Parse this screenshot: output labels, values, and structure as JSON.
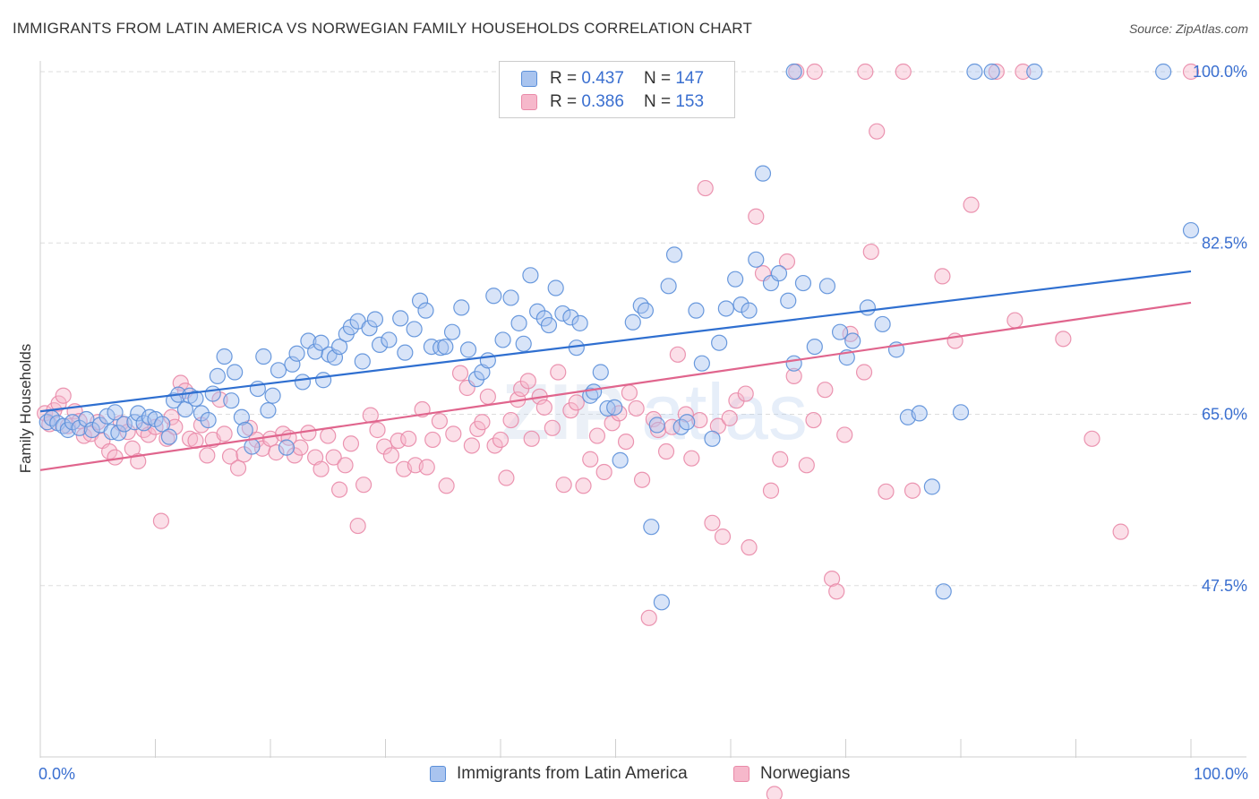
{
  "title": "IMMIGRANTS FROM LATIN AMERICA VS NORWEGIAN FAMILY HOUSEHOLDS CORRELATION CHART",
  "source": "Source: ZipAtlas.com",
  "colors": {
    "blue_fill": "#a9c4ef",
    "blue_stroke": "#5b8fd9",
    "blue_line": "#2f6fd0",
    "pink_fill": "#f6b8cb",
    "pink_stroke": "#e98aa8",
    "pink_line": "#e0658d",
    "tick_label": "#3a6fd0",
    "grid": "#dddddd"
  },
  "legend": {
    "series1": {
      "r_label": "R = ",
      "r_value": "0.437",
      "n_label": "N = ",
      "n_value": "147"
    },
    "series2": {
      "r_label": "R = ",
      "r_value": "0.386",
      "n_label": "N = ",
      "n_value": "153"
    }
  },
  "bottom_legend": {
    "series1": "Immigrants from Latin America",
    "series2": "Norwegians"
  },
  "chart_data": {
    "type": "scatter",
    "title": "IMMIGRANTS FROM LATIN AMERICA VS NORWEGIAN FAMILY HOUSEHOLDS CORRELATION CHART",
    "xlabel": "",
    "ylabel": "Family Households",
    "xlim": [
      0,
      100
    ],
    "ylim": [
      30,
      100
    ],
    "x_tick_labels": [
      "0.0%",
      "100.0%"
    ],
    "y_ticks": [
      47.5,
      65.0,
      82.5,
      100.0
    ],
    "y_tick_labels": [
      "47.5%",
      "65.0%",
      "82.5%",
      "100.0%"
    ],
    "grid": true,
    "legend_position": "top-center",
    "series": [
      {
        "name": "Immigrants from Latin America",
        "color": "#a9c4ef",
        "trend": {
          "x": [
            0,
            100
          ],
          "y": [
            65.3,
            79.6
          ]
        },
        "points": [
          [
            0.6,
            64.2
          ],
          [
            1,
            64.6
          ],
          [
            1.5,
            64.1
          ],
          [
            2,
            63.8
          ],
          [
            2.4,
            63.4
          ],
          [
            2.8,
            64.2
          ],
          [
            3.4,
            63.6
          ],
          [
            4,
            64.5
          ],
          [
            4.5,
            63.4
          ],
          [
            5.2,
            63.9
          ],
          [
            5.8,
            64.8
          ],
          [
            6.2,
            63.2
          ],
          [
            6.8,
            63.1
          ],
          [
            6.5,
            65.2
          ],
          [
            7.3,
            64
          ],
          [
            8.2,
            64.2
          ],
          [
            8.5,
            65.1
          ],
          [
            9,
            64.1
          ],
          [
            9.5,
            64.7
          ],
          [
            10,
            64.5
          ],
          [
            10.6,
            64
          ],
          [
            11.2,
            62.7
          ],
          [
            11.6,
            66.4
          ],
          [
            12,
            67
          ],
          [
            12.6,
            65.5
          ],
          [
            13,
            66.9
          ],
          [
            13.5,
            66.6
          ],
          [
            14,
            65.1
          ],
          [
            14.6,
            64.4
          ],
          [
            15,
            67.1
          ],
          [
            15.4,
            68.9
          ],
          [
            16,
            70.9
          ],
          [
            16.6,
            66.4
          ],
          [
            16.9,
            69.3
          ],
          [
            17.5,
            64.7
          ],
          [
            17.8,
            63.4
          ],
          [
            18.4,
            61.7
          ],
          [
            18.9,
            67.6
          ],
          [
            19.4,
            70.9
          ],
          [
            19.8,
            65.4
          ],
          [
            20.2,
            66.9
          ],
          [
            20.7,
            69.5
          ],
          [
            21.4,
            61.6
          ],
          [
            21.9,
            70.1
          ],
          [
            22.3,
            71.2
          ],
          [
            22.8,
            68.3
          ],
          [
            23.3,
            72.5
          ],
          [
            23.9,
            71.4
          ],
          [
            24.4,
            72.3
          ],
          [
            24.6,
            68.5
          ],
          [
            25.1,
            71.1
          ],
          [
            25.6,
            70.8
          ],
          [
            26,
            71.9
          ],
          [
            26.6,
            73.2
          ],
          [
            27,
            73.9
          ],
          [
            27.6,
            74.5
          ],
          [
            28,
            70.4
          ],
          [
            28.6,
            73.8
          ],
          [
            29.1,
            74.7
          ],
          [
            29.5,
            72.1
          ],
          [
            30.3,
            72.6
          ],
          [
            31.3,
            74.8
          ],
          [
            31.7,
            71.3
          ],
          [
            32.5,
            73.7
          ],
          [
            33,
            76.6
          ],
          [
            33.5,
            75.6
          ],
          [
            34,
            71.9
          ],
          [
            34.8,
            71.8
          ],
          [
            35.2,
            71.9
          ],
          [
            35.8,
            73.4
          ],
          [
            36.6,
            75.9
          ],
          [
            37.2,
            71.6
          ],
          [
            37.9,
            68.6
          ],
          [
            38.4,
            69.3
          ],
          [
            38.9,
            70.5
          ],
          [
            39.4,
            77.1
          ],
          [
            40.2,
            72.6
          ],
          [
            40.9,
            76.9
          ],
          [
            41.6,
            74.3
          ],
          [
            42,
            72.2
          ],
          [
            42.6,
            79.2
          ],
          [
            43.2,
            75.5
          ],
          [
            43.8,
            74.8
          ],
          [
            44.2,
            74.1
          ],
          [
            44.8,
            77.9
          ],
          [
            45.4,
            75.3
          ],
          [
            46.1,
            74.9
          ],
          [
            46.6,
            71.8
          ],
          [
            46.9,
            74.3
          ],
          [
            47.8,
            66.9
          ],
          [
            48.1,
            67.3
          ],
          [
            48.7,
            69.3
          ],
          [
            49.3,
            65.6
          ],
          [
            49.9,
            65.7
          ],
          [
            50.4,
            60.3
          ],
          [
            51.5,
            74.4
          ],
          [
            52.2,
            76.1
          ],
          [
            52.6,
            75.6
          ],
          [
            53.1,
            53.5
          ],
          [
            53.6,
            63.9
          ],
          [
            54,
            45.8
          ],
          [
            54.6,
            78.1
          ],
          [
            55.1,
            81.3
          ],
          [
            55.7,
            63.7
          ],
          [
            56.2,
            64.2
          ],
          [
            57,
            75.6
          ],
          [
            57.5,
            70.2
          ],
          [
            58.4,
            62.5
          ],
          [
            59,
            72.3
          ],
          [
            59.6,
            75.8
          ],
          [
            60.4,
            78.8
          ],
          [
            60.9,
            76.2
          ],
          [
            61.6,
            75.6
          ],
          [
            62.2,
            80.8
          ],
          [
            62.8,
            89.6
          ],
          [
            63.5,
            78.4
          ],
          [
            64.2,
            79.4
          ],
          [
            65,
            76.6
          ],
          [
            65.5,
            70.2
          ],
          [
            66.3,
            78.4
          ],
          [
            67.3,
            71.9
          ],
          [
            68.4,
            78.1
          ],
          [
            69.5,
            73.4
          ],
          [
            70.1,
            70.8
          ],
          [
            70.6,
            72.5
          ],
          [
            71.9,
            75.9
          ],
          [
            73.2,
            74.2
          ],
          [
            74.4,
            71.6
          ],
          [
            75.4,
            64.7
          ],
          [
            76.4,
            65.1
          ],
          [
            77.5,
            57.6
          ],
          [
            78.5,
            46.9
          ],
          [
            80,
            65.2
          ],
          [
            82.7,
            100
          ],
          [
            86.4,
            100
          ],
          [
            81.2,
            100
          ],
          [
            97.6,
            100
          ],
          [
            100,
            83.8
          ],
          [
            65.5,
            100
          ]
        ]
      },
      {
        "name": "Norwegians",
        "color": "#f6b8cb",
        "trend": {
          "x": [
            0,
            100
          ],
          "y": [
            59.3,
            76.4
          ]
        },
        "points": [
          [
            0.4,
            65.1
          ],
          [
            0.8,
            64
          ],
          [
            1.2,
            65.4
          ],
          [
            1.6,
            66.1
          ],
          [
            2,
            66.9
          ],
          [
            2.4,
            63.8
          ],
          [
            3,
            65.3
          ],
          [
            3.4,
            64.3
          ],
          [
            3.8,
            62.8
          ],
          [
            4.4,
            63
          ],
          [
            5,
            64.2
          ],
          [
            5.4,
            62.3
          ],
          [
            6,
            61.2
          ],
          [
            6.5,
            60.6
          ],
          [
            7,
            64.1
          ],
          [
            7.6,
            63.2
          ],
          [
            8,
            61.5
          ],
          [
            8.5,
            60.2
          ],
          [
            9,
            63.4
          ],
          [
            9.4,
            62.9
          ],
          [
            10,
            63.7
          ],
          [
            10.5,
            54.1
          ],
          [
            11,
            62.5
          ],
          [
            11.4,
            64.7
          ],
          [
            11.7,
            63.7
          ],
          [
            12.2,
            68.2
          ],
          [
            12.6,
            67.4
          ],
          [
            13,
            62.5
          ],
          [
            13.5,
            62.3
          ],
          [
            14,
            63.9
          ],
          [
            14.5,
            60.8
          ],
          [
            15,
            62.4
          ],
          [
            15.6,
            66.5
          ],
          [
            16,
            63
          ],
          [
            16.5,
            60.7
          ],
          [
            17.2,
            59.5
          ],
          [
            17.7,
            60.9
          ],
          [
            18.2,
            63.6
          ],
          [
            18.8,
            62.4
          ],
          [
            19.3,
            61.5
          ],
          [
            20,
            62.5
          ],
          [
            20.5,
            61.1
          ],
          [
            21.1,
            63
          ],
          [
            21.6,
            62.6
          ],
          [
            22.1,
            60.8
          ],
          [
            22.6,
            61.6
          ],
          [
            23.3,
            63.1
          ],
          [
            23.9,
            60.6
          ],
          [
            24.4,
            59.4
          ],
          [
            25,
            62.8
          ],
          [
            25.5,
            60.6
          ],
          [
            26,
            57.3
          ],
          [
            26.5,
            59.8
          ],
          [
            27,
            62
          ],
          [
            27.6,
            53.6
          ],
          [
            28.1,
            57.8
          ],
          [
            28.7,
            64.9
          ],
          [
            29.3,
            63.4
          ],
          [
            29.9,
            61.7
          ],
          [
            30.5,
            60.8
          ],
          [
            31.1,
            62.3
          ],
          [
            31.6,
            59.4
          ],
          [
            32,
            62.5
          ],
          [
            32.6,
            59.8
          ],
          [
            33.2,
            65.5
          ],
          [
            33.6,
            59.6
          ],
          [
            34.1,
            62.4
          ],
          [
            34.7,
            64.3
          ],
          [
            35.3,
            57.7
          ],
          [
            35.9,
            63
          ],
          [
            36.5,
            69.2
          ],
          [
            37.1,
            67.7
          ],
          [
            37.5,
            61.8
          ],
          [
            38,
            63.5
          ],
          [
            38.4,
            64.2
          ],
          [
            38.9,
            66.8
          ],
          [
            39.5,
            61.8
          ],
          [
            40,
            62.4
          ],
          [
            40.5,
            58.5
          ],
          [
            40.9,
            64.4
          ],
          [
            41.5,
            66.5
          ],
          [
            41.8,
            67.6
          ],
          [
            42.4,
            68.4
          ],
          [
            42.7,
            62.5
          ],
          [
            43.4,
            66.8
          ],
          [
            43.8,
            65.7
          ],
          [
            44.5,
            63.6
          ],
          [
            45,
            69.3
          ],
          [
            45.5,
            57.8
          ],
          [
            46.1,
            65.4
          ],
          [
            46.6,
            66.2
          ],
          [
            47.2,
            57.7
          ],
          [
            47.8,
            60.4
          ],
          [
            48.4,
            62.8
          ],
          [
            49,
            59.1
          ],
          [
            49.7,
            64.1
          ],
          [
            50.3,
            65.1
          ],
          [
            50.9,
            62.2
          ],
          [
            51.2,
            67.2
          ],
          [
            51.8,
            65.6
          ],
          [
            52.3,
            58.3
          ],
          [
            52.9,
            44.2
          ],
          [
            53.3,
            64.5
          ],
          [
            53.7,
            63.4
          ],
          [
            54.4,
            61.2
          ],
          [
            54.9,
            63.7
          ],
          [
            55.4,
            71.1
          ],
          [
            56.1,
            65
          ],
          [
            56.6,
            60.5
          ],
          [
            57.3,
            64.4
          ],
          [
            57.8,
            88.1
          ],
          [
            58.4,
            53.9
          ],
          [
            58.9,
            63.8
          ],
          [
            59.3,
            52.5
          ],
          [
            59.9,
            64.6
          ],
          [
            60.5,
            66.4
          ],
          [
            61.3,
            67.1
          ],
          [
            61.6,
            51.4
          ],
          [
            62.2,
            85.2
          ],
          [
            62.8,
            79.4
          ],
          [
            63.5,
            57.2
          ],
          [
            64.3,
            60.4
          ],
          [
            64.9,
            80.6
          ],
          [
            65.5,
            68.9
          ],
          [
            66.6,
            59.8
          ],
          [
            67.2,
            64.4
          ],
          [
            68.2,
            67.5
          ],
          [
            68.8,
            48.2
          ],
          [
            69.2,
            46.9
          ],
          [
            69.9,
            62.9
          ],
          [
            70.4,
            73.2
          ],
          [
            71.6,
            69.3
          ],
          [
            72.2,
            81.6
          ],
          [
            72.7,
            93.9
          ],
          [
            73.5,
            57.1
          ],
          [
            75.8,
            57.2
          ],
          [
            78.4,
            79.1
          ],
          [
            79.5,
            72.5
          ],
          [
            80.9,
            86.4
          ],
          [
            83.1,
            100
          ],
          [
            84.7,
            74.6
          ],
          [
            88.9,
            72.7
          ],
          [
            91.4,
            62.5
          ],
          [
            93.9,
            53
          ],
          [
            100,
            100
          ],
          [
            85.4,
            100
          ],
          [
            75,
            100
          ],
          [
            71.7,
            100
          ],
          [
            65.7,
            100
          ],
          [
            67.3,
            100
          ],
          [
            63.8,
            26.2
          ]
        ]
      }
    ]
  }
}
